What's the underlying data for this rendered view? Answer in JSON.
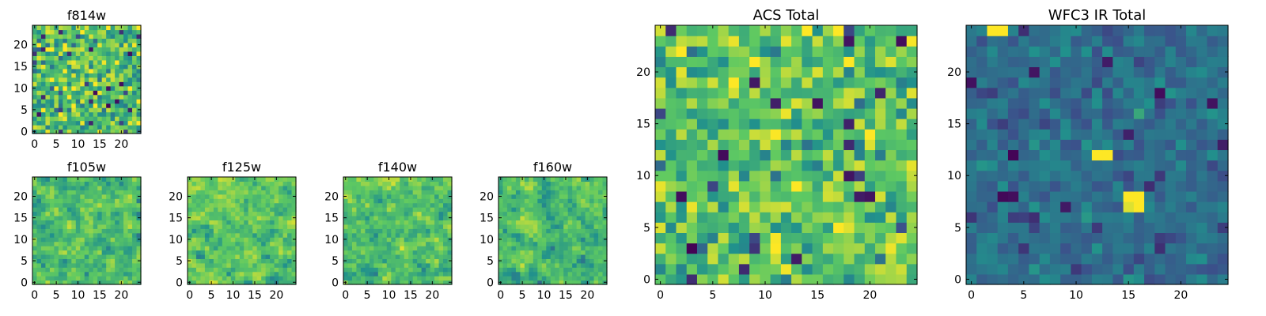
{
  "figure": {
    "type": "heatmap-grid",
    "colormap": "viridis",
    "colors": [
      "#440154",
      "#3b528b",
      "#21918c",
      "#5ec962",
      "#fde725"
    ]
  },
  "chart_data": [
    {
      "id": "f814w",
      "type": "heatmap",
      "title": "f814w",
      "grid_size": [
        25,
        25
      ],
      "xlim": [
        0,
        24
      ],
      "ylim": [
        0,
        24
      ],
      "xticks": [
        0,
        5,
        10,
        15,
        20
      ],
      "yticks": [
        0,
        5,
        10,
        15,
        20
      ],
      "value_range": [
        0,
        1
      ],
      "value_mean": 0.7,
      "value_spread": 0.24,
      "smoothing": 0,
      "seed": 814,
      "values": null
    },
    {
      "id": "f105w",
      "type": "heatmap",
      "title": "f105w",
      "grid_size": [
        25,
        25
      ],
      "xlim": [
        0,
        24
      ],
      "ylim": [
        0,
        24
      ],
      "xticks": [
        0,
        5,
        10,
        15,
        20
      ],
      "yticks": [
        0,
        5,
        10,
        15,
        20
      ],
      "value_range": [
        0,
        1
      ],
      "value_mean": 0.72,
      "value_spread": 0.22,
      "smoothing": 1,
      "seed": 105,
      "values": null
    },
    {
      "id": "f125w",
      "type": "heatmap",
      "title": "f125w",
      "grid_size": [
        25,
        25
      ],
      "xlim": [
        0,
        24
      ],
      "ylim": [
        0,
        24
      ],
      "xticks": [
        0,
        5,
        10,
        15,
        20
      ],
      "yticks": [
        0,
        5,
        10,
        15,
        20
      ],
      "value_range": [
        0,
        1
      ],
      "value_mean": 0.76,
      "value_spread": 0.2,
      "smoothing": 1,
      "seed": 125,
      "values": null
    },
    {
      "id": "f140w",
      "type": "heatmap",
      "title": "f140w",
      "grid_size": [
        25,
        25
      ],
      "xlim": [
        0,
        24
      ],
      "ylim": [
        0,
        24
      ],
      "xticks": [
        0,
        5,
        10,
        15,
        20
      ],
      "yticks": [
        0,
        5,
        10,
        15,
        20
      ],
      "value_range": [
        0,
        1
      ],
      "value_mean": 0.72,
      "value_spread": 0.22,
      "smoothing": 1,
      "seed": 140,
      "values": null
    },
    {
      "id": "f160w",
      "type": "heatmap",
      "title": "f160w",
      "grid_size": [
        25,
        25
      ],
      "xlim": [
        0,
        24
      ],
      "ylim": [
        0,
        24
      ],
      "xticks": [
        0,
        5,
        10,
        15,
        20
      ],
      "yticks": [
        0,
        5,
        10,
        15,
        20
      ],
      "value_range": [
        0,
        1
      ],
      "value_mean": 0.7,
      "value_spread": 0.22,
      "smoothing": 1,
      "seed": 160,
      "values": null
    },
    {
      "id": "acs-total",
      "type": "heatmap",
      "title": "ACS Total",
      "grid_size": [
        25,
        25
      ],
      "xlim": [
        0,
        24
      ],
      "ylim": [
        0,
        24
      ],
      "xticks": [
        0,
        5,
        10,
        15,
        20
      ],
      "yticks": [
        0,
        5,
        10,
        15,
        20
      ],
      "value_range": [
        0,
        1
      ],
      "value_mean": 0.72,
      "value_spread": 0.2,
      "smoothing": 0,
      "seed": 900,
      "values": null
    },
    {
      "id": "wfc3-ir-total",
      "type": "heatmap",
      "title": "WFC3 IR Total",
      "grid_size": [
        25,
        25
      ],
      "xlim": [
        0,
        24
      ],
      "ylim": [
        0,
        24
      ],
      "xticks": [
        0,
        5,
        10,
        15,
        20
      ],
      "yticks": [
        0,
        5,
        10,
        15,
        20
      ],
      "value_range": [
        0,
        1
      ],
      "value_mean": 0.36,
      "value_spread": 0.1,
      "smoothing": 0,
      "seed": 777,
      "hotspots": [
        {
          "x": 2,
          "y": 24,
          "value": 1.0
        },
        {
          "x": 3,
          "y": 24,
          "value": 1.0
        },
        {
          "x": 12,
          "y": 12,
          "value": 1.0
        },
        {
          "x": 13,
          "y": 12,
          "value": 1.0
        },
        {
          "x": 15,
          "y": 8,
          "value": 1.0
        },
        {
          "x": 16,
          "y": 8,
          "value": 1.0
        },
        {
          "x": 15,
          "y": 7,
          "value": 0.95
        },
        {
          "x": 16,
          "y": 7,
          "value": 1.0
        },
        {
          "x": 16,
          "y": 16,
          "value": 0.6
        }
      ],
      "values": null
    }
  ]
}
